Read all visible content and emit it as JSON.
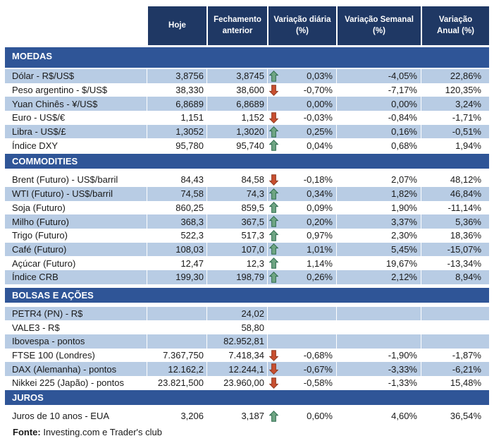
{
  "colors": {
    "header_bg": "#1F3864",
    "header_text": "#FFFFFF",
    "section_bg": "#2F5597",
    "band_bg": "#B8CCE4",
    "body_text": "#1A1A1A",
    "arrow_up_fill": "#6FA583",
    "arrow_up_stroke": "#2E6B4F",
    "arrow_down_fill": "#C94F30",
    "arrow_down_stroke": "#8E3A22"
  },
  "header": {
    "columns": [
      {
        "line1": "Hoje",
        "line2": ""
      },
      {
        "line1": "Fechamento",
        "line2": "anterior"
      },
      {
        "line1": "Variação diária",
        "line2": "(%)"
      },
      {
        "line1": "Variação Semanal",
        "line2": "(%)"
      },
      {
        "line1": "Variação",
        "line2": "Anual (%)"
      }
    ]
  },
  "sections": [
    {
      "title": "MOEDAS",
      "band_start": "shaded",
      "rows": [
        {
          "label": "Dólar - R$/US$",
          "hoje": "3,8756",
          "fechamento": "3,8745",
          "arrow": "up",
          "diaria": "0,03%",
          "semanal": "-4,05%",
          "anual": "22,86%"
        },
        {
          "label": "Peso argentino - $/US$",
          "hoje": "38,330",
          "fechamento": "38,600",
          "arrow": "down",
          "diaria": "-0,70%",
          "semanal": "-7,17%",
          "anual": "120,35%"
        },
        {
          "label": "Yuan Chinês - ¥/US$",
          "hoje": "6,8689",
          "fechamento": "6,8689",
          "arrow": "none",
          "diaria": "0,00%",
          "semanal": "0,00%",
          "anual": "3,24%"
        },
        {
          "label": "Euro - US$/€",
          "hoje": "1,151",
          "fechamento": "1,152",
          "arrow": "down",
          "diaria": "-0,03%",
          "semanal": "-0,84%",
          "anual": "-1,71%"
        },
        {
          "label": "Libra - US$/£",
          "hoje": "1,3052",
          "fechamento": "1,3020",
          "arrow": "up",
          "diaria": "0,25%",
          "semanal": "0,16%",
          "anual": "-0,51%"
        },
        {
          "label": "Índice DXY",
          "hoje": "95,780",
          "fechamento": "95,740",
          "arrow": "up",
          "diaria": "0,04%",
          "semanal": "0,68%",
          "anual": "1,94%"
        }
      ]
    },
    {
      "title": "COMMODITIES",
      "band_start": "plain",
      "rows": [
        {
          "label": "Brent (Futuro) - US$/barril",
          "hoje": "84,43",
          "fechamento": "84,58",
          "arrow": "down",
          "diaria": "-0,18%",
          "semanal": "2,07%",
          "anual": "48,12%"
        },
        {
          "label": "WTI (Futuro) - US$/barril",
          "hoje": "74,58",
          "fechamento": "74,3",
          "arrow": "up",
          "diaria": "0,34%",
          "semanal": "1,82%",
          "anual": "46,84%"
        },
        {
          "label": "Soja (Futuro)",
          "hoje": "860,25",
          "fechamento": "859,5",
          "arrow": "up",
          "diaria": "0,09%",
          "semanal": "1,90%",
          "anual": "-11,14%"
        },
        {
          "label": "Milho (Futuro)",
          "hoje": "368,3",
          "fechamento": "367,5",
          "arrow": "up",
          "diaria": "0,20%",
          "semanal": "3,37%",
          "anual": "5,36%"
        },
        {
          "label": "Trigo (Futuro)",
          "hoje": "522,3",
          "fechamento": "517,3",
          "arrow": "up",
          "diaria": "0,97%",
          "semanal": "2,30%",
          "anual": "18,36%"
        },
        {
          "label": "Café (Futuro)",
          "hoje": "108,03",
          "fechamento": "107,0",
          "arrow": "up",
          "diaria": "1,01%",
          "semanal": "5,45%",
          "anual": "-15,07%"
        },
        {
          "label": "Açúcar (Futuro)",
          "hoje": "12,47",
          "fechamento": "12,3",
          "arrow": "up",
          "diaria": "1,14%",
          "semanal": "19,67%",
          "anual": "-13,34%"
        },
        {
          "label": "Índice CRB",
          "hoje": "199,30",
          "fechamento": "198,79",
          "arrow": "up",
          "diaria": "0,26%",
          "semanal": "2,12%",
          "anual": "8,94%"
        }
      ]
    },
    {
      "title": "BOLSAS E AÇÕES",
      "band_start": "shaded",
      "rows": [
        {
          "label": "PETR4 (PN) - R$",
          "hoje": "",
          "fechamento": "24,02",
          "arrow": "none",
          "diaria": "",
          "semanal": "",
          "anual": ""
        },
        {
          "label": "VALE3 - R$",
          "hoje": "",
          "fechamento": "58,80",
          "arrow": "none",
          "diaria": "",
          "semanal": "",
          "anual": ""
        },
        {
          "label": "Ibovespa - pontos",
          "hoje": "",
          "fechamento": "82.952,81",
          "arrow": "none",
          "diaria": "",
          "semanal": "",
          "anual": ""
        },
        {
          "label": "FTSE 100 (Londres)",
          "hoje": "7.367,750",
          "fechamento": "7.418,34",
          "arrow": "down",
          "diaria": "-0,68%",
          "semanal": "-1,90%",
          "anual": "-1,87%"
        },
        {
          "label": "DAX (Alemanha) - pontos",
          "hoje": "12.162,2",
          "fechamento": "12.244,1",
          "arrow": "down",
          "diaria": "-0,67%",
          "semanal": "-3,33%",
          "anual": "-6,21%"
        },
        {
          "label": "Nikkei 225 (Japão) - pontos",
          "hoje": "23.821,500",
          "fechamento": "23.960,00",
          "arrow": "down",
          "diaria": "-0,58%",
          "semanal": "-1,33%",
          "anual": "15,48%"
        }
      ]
    },
    {
      "title": "JUROS",
      "band_start": "plain",
      "rows": [
        {
          "label": "Juros de 10 anos - EUA",
          "hoje": "3,206",
          "fechamento": "3,187",
          "arrow": "up",
          "diaria": "0,60%",
          "semanal": "4,60%",
          "anual": "36,54%"
        }
      ]
    }
  ],
  "footer": {
    "label": "Fonte:",
    "text": " Investing.com e Trader's club"
  }
}
